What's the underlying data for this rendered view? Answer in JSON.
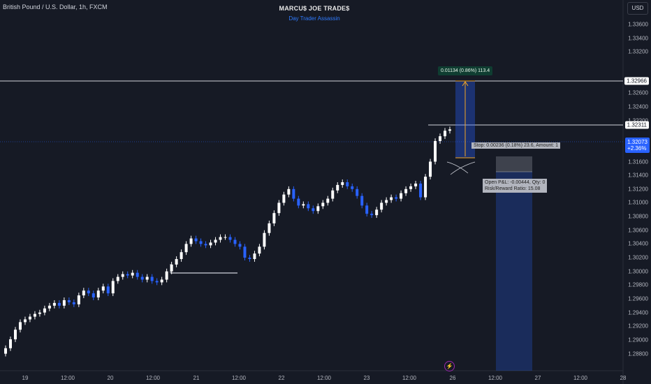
{
  "symbol_title": "British Pound / U.S. Dollar, 1h, FXCM",
  "watermark": {
    "title": "MARCU$ JOE TRADE$",
    "subtitle": "Day Trader Assassin"
  },
  "currency": "USD",
  "y_axis_ticks": [
    "1.33600",
    "1.33400",
    "1.33200",
    "1.32800",
    "1.32600",
    "1.32400",
    "1.32200",
    "1.31800",
    "1.31600",
    "1.31400",
    "1.31200",
    "1.31000",
    "1.30800",
    "1.30600",
    "1.30400",
    "1.30200",
    "1.30000",
    "1.29800",
    "1.29600",
    "1.29400",
    "1.29200",
    "1.29000",
    "1.28800"
  ],
  "x_axis_ticks": [
    "19",
    "12:00",
    "20",
    "12:00",
    "21",
    "12:00",
    "22",
    "12:00",
    "23",
    "12:00",
    "26",
    "12:00",
    "27",
    "12:00",
    "28"
  ],
  "price_labels": {
    "level_high": "1.32966",
    "level_mid": "1.32311",
    "current_price": "1.32073",
    "current_change": "+2.36%"
  },
  "measure_label": "0.01134 (0.86%) 113.4",
  "stop_label": "Stop: 0.00236 (0.18%) 23.6, Amount: 1",
  "position_label_line1": "Open P&L: -0.00444, Qty: 0",
  "position_label_line2": "Risk/Reward Ratio: 15.08",
  "colors": {
    "background": "#161a25",
    "up_candle": "#ffffff",
    "down_candle": "#2962ff",
    "accent": "#2962ff",
    "measure_bg": "#0f3d31"
  },
  "chart_data": {
    "type": "candlestick",
    "symbol": "GBPUSD",
    "interval": "1h",
    "x_labels": [
      "19",
      "12:00",
      "20",
      "12:00",
      "21",
      "12:00",
      "22",
      "12:00",
      "23",
      "12:00",
      "26",
      "12:00",
      "27",
      "12:00",
      "28"
    ],
    "close": [
      1.2888,
      1.2901,
      1.2915,
      1.2926,
      1.293,
      1.2934,
      1.2938,
      1.294,
      1.2946,
      1.295,
      1.2954,
      1.295,
      1.2958,
      1.2955,
      1.2952,
      1.2965,
      1.2972,
      1.2968,
      1.2962,
      1.2972,
      1.2978,
      1.2968,
      1.2986,
      1.2992,
      1.2996,
      1.2994,
      1.2998,
      1.2992,
      1.2988,
      1.2992,
      1.2986,
      1.2984,
      1.2988,
      1.3,
      1.301,
      1.3018,
      1.3028,
      1.304,
      1.3048,
      1.3044,
      1.304,
      1.3038,
      1.3042,
      1.3046,
      1.305,
      1.305,
      1.3046,
      1.304,
      1.3036,
      1.302,
      1.3018,
      1.3026,
      1.3036,
      1.3056,
      1.307,
      1.3085,
      1.31,
      1.3112,
      1.312,
      1.3106,
      1.3096,
      1.3098,
      1.3092,
      1.3088,
      1.3095,
      1.31,
      1.3106,
      1.3118,
      1.3126,
      1.313,
      1.3124,
      1.312,
      1.311,
      1.3096,
      1.3084,
      1.3082,
      1.309,
      1.31,
      1.3104,
      1.3108,
      1.3106,
      1.3114,
      1.312,
      1.3124,
      1.3128,
      1.3108,
      1.3138,
      1.316,
      1.319,
      1.3197,
      1.3205,
      1.3207
    ],
    "levels": [
      1.32966,
      1.32311
    ],
    "measure": {
      "price_change": 0.01134,
      "percent": 0.86,
      "pips": 113.4
    },
    "current_price": 1.32073,
    "change_percent": 2.36,
    "stop": {
      "distance": 0.00236,
      "percent": 0.18,
      "pips": 23.6,
      "amount": 1
    },
    "position": {
      "open_pl": -0.00444,
      "qty": 0,
      "risk_reward": 15.08
    },
    "ylim": [
      1.288,
      1.338
    ]
  }
}
